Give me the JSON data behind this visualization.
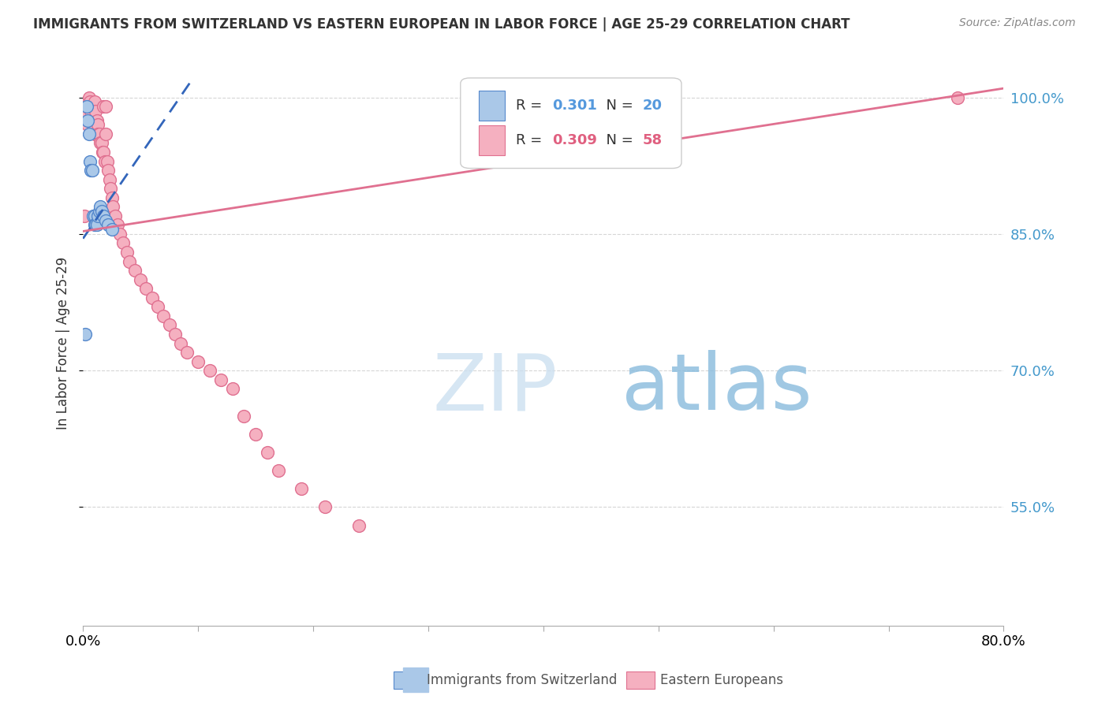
{
  "title": "IMMIGRANTS FROM SWITZERLAND VS EASTERN EUROPEAN IN LABOR FORCE | AGE 25-29 CORRELATION CHART",
  "source": "Source: ZipAtlas.com",
  "ylabel": "In Labor Force | Age 25-29",
  "blue_label": "Immigrants from Switzerland",
  "pink_label": "Eastern Europeans",
  "xlim": [
    0.0,
    0.8
  ],
  "ylim": [
    0.42,
    1.04
  ],
  "yticks": [
    0.55,
    0.7,
    0.85,
    1.0
  ],
  "ytick_labels": [
    "55.0%",
    "70.0%",
    "85.0%",
    "100.0%"
  ],
  "xticks": [
    0.0,
    0.1,
    0.2,
    0.3,
    0.4,
    0.5,
    0.6,
    0.7,
    0.8
  ],
  "xtick_labels": [
    "0.0%",
    "",
    "",
    "",
    "",
    "",
    "",
    "",
    "80.0%"
  ],
  "blue_color": "#aac8e8",
  "blue_edge_color": "#5588cc",
  "blue_line_color": "#3366bb",
  "pink_color": "#f5b0c0",
  "pink_edge_color": "#e07090",
  "pink_line_color": "#e07090",
  "grid_color": "#cccccc",
  "legend_blue_r_val": "0.301",
  "legend_blue_n_val": "20",
  "legend_pink_r_val": "0.309",
  "legend_pink_n_val": "58",
  "blue_r_color": "#5599dd",
  "blue_n_color": "#5599dd",
  "pink_r_color": "#e06080",
  "pink_n_color": "#e06080",
  "blue_scatter_x": [
    0.002,
    0.003,
    0.004,
    0.005,
    0.006,
    0.007,
    0.008,
    0.009,
    0.01,
    0.01,
    0.011,
    0.012,
    0.013,
    0.014,
    0.015,
    0.016,
    0.018,
    0.02,
    0.022,
    0.025
  ],
  "blue_scatter_y": [
    0.74,
    0.99,
    0.975,
    0.96,
    0.93,
    0.92,
    0.92,
    0.87,
    0.87,
    0.86,
    0.86,
    0.86,
    0.87,
    0.875,
    0.88,
    0.875,
    0.87,
    0.865,
    0.86,
    0.855
  ],
  "blue_trend_x0": 0.0,
  "blue_trend_y0": 0.845,
  "blue_trend_x1": 0.095,
  "blue_trend_y1": 1.02,
  "pink_trend_x0": 0.0,
  "pink_trend_y0": 0.853,
  "pink_trend_x1": 0.8,
  "pink_trend_y1": 1.01,
  "pink_scatter_x": [
    0.001,
    0.002,
    0.003,
    0.004,
    0.005,
    0.006,
    0.007,
    0.008,
    0.009,
    0.01,
    0.01,
    0.011,
    0.012,
    0.013,
    0.013,
    0.014,
    0.015,
    0.016,
    0.017,
    0.018,
    0.018,
    0.019,
    0.02,
    0.02,
    0.021,
    0.022,
    0.023,
    0.024,
    0.025,
    0.026,
    0.028,
    0.03,
    0.032,
    0.035,
    0.038,
    0.04,
    0.045,
    0.05,
    0.055,
    0.06,
    0.065,
    0.07,
    0.075,
    0.08,
    0.085,
    0.09,
    0.1,
    0.11,
    0.12,
    0.13,
    0.14,
    0.15,
    0.16,
    0.17,
    0.19,
    0.21,
    0.24,
    0.76
  ],
  "pink_scatter_y": [
    0.87,
    0.99,
    0.98,
    0.97,
    1.0,
    0.995,
    0.985,
    0.975,
    0.965,
    0.995,
    0.96,
    0.985,
    0.975,
    0.97,
    0.96,
    0.96,
    0.95,
    0.95,
    0.94,
    0.94,
    0.99,
    0.93,
    0.99,
    0.96,
    0.93,
    0.92,
    0.91,
    0.9,
    0.89,
    0.88,
    0.87,
    0.86,
    0.85,
    0.84,
    0.83,
    0.82,
    0.81,
    0.8,
    0.79,
    0.78,
    0.77,
    0.76,
    0.75,
    0.74,
    0.73,
    0.72,
    0.71,
    0.7,
    0.69,
    0.68,
    0.65,
    0.63,
    0.61,
    0.59,
    0.57,
    0.55,
    0.53,
    1.0
  ]
}
